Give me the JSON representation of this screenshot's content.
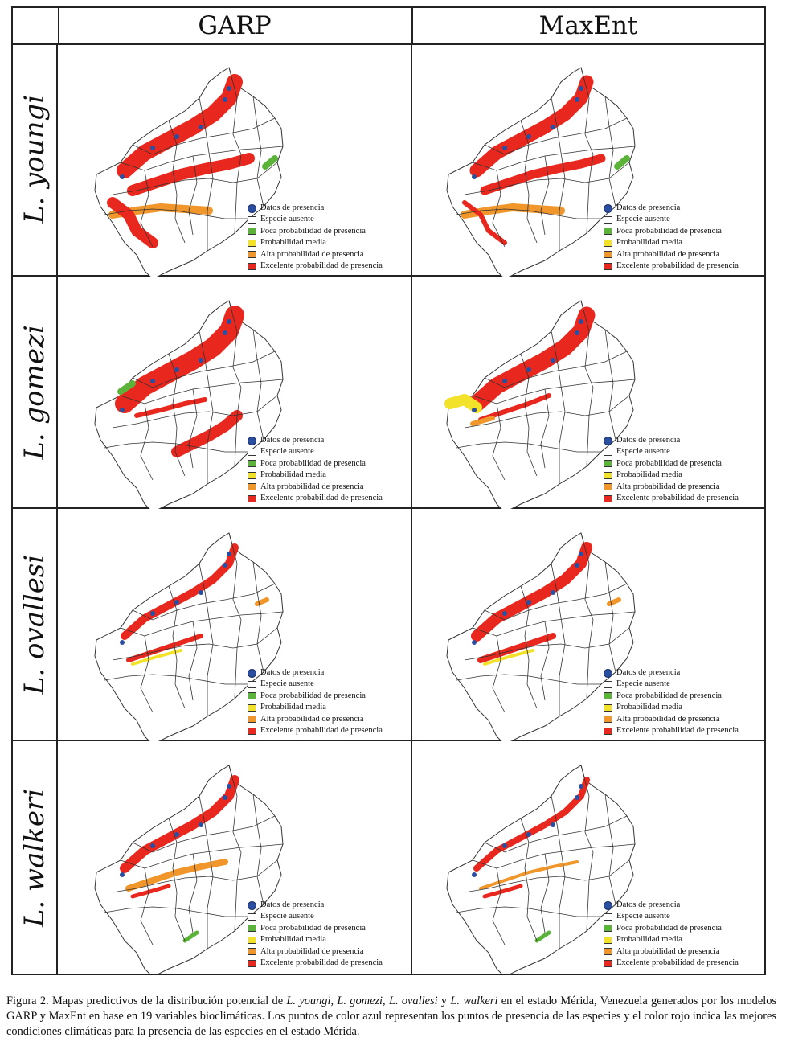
{
  "headers": {
    "garp": "GARP",
    "maxent": "MaxEnt"
  },
  "species": [
    "L. youngi",
    "L. gomezi",
    "L. ovallesi",
    "L. walkeri"
  ],
  "legend": {
    "presence": "Datos de presencia",
    "absent": "Especie ausente",
    "low": "Poca probabilidad de presencia",
    "medium": "Probabilidad media",
    "high": "Alta probabilidad de presencia",
    "excellent": "Excelente probabilidad de presencia"
  },
  "colors": {
    "presence": "#2a4ea0",
    "absent": "#ffffff",
    "low": "#5cb33a",
    "medium": "#f2e22a",
    "high": "#f0962a",
    "excellent": "#e8281e"
  },
  "caption": {
    "p1": "Figura 2. Mapas predictivos de la distribución potencial de ",
    "s1": "L. youngi, L. gomezi, L. ovallesi",
    "p2": " y ",
    "s2": "L. walkeri",
    "p3": " en el estado Mérida, Venezuela generados por los modelos GARP y MaxEnt en base en 19 variables bioclimáticas. Los puntos de color azul representan los puntos de presencia de las especies y el color rojo indica las mejores condiciones climáticas para la presencia de las especies en el estado Mérida."
  }
}
